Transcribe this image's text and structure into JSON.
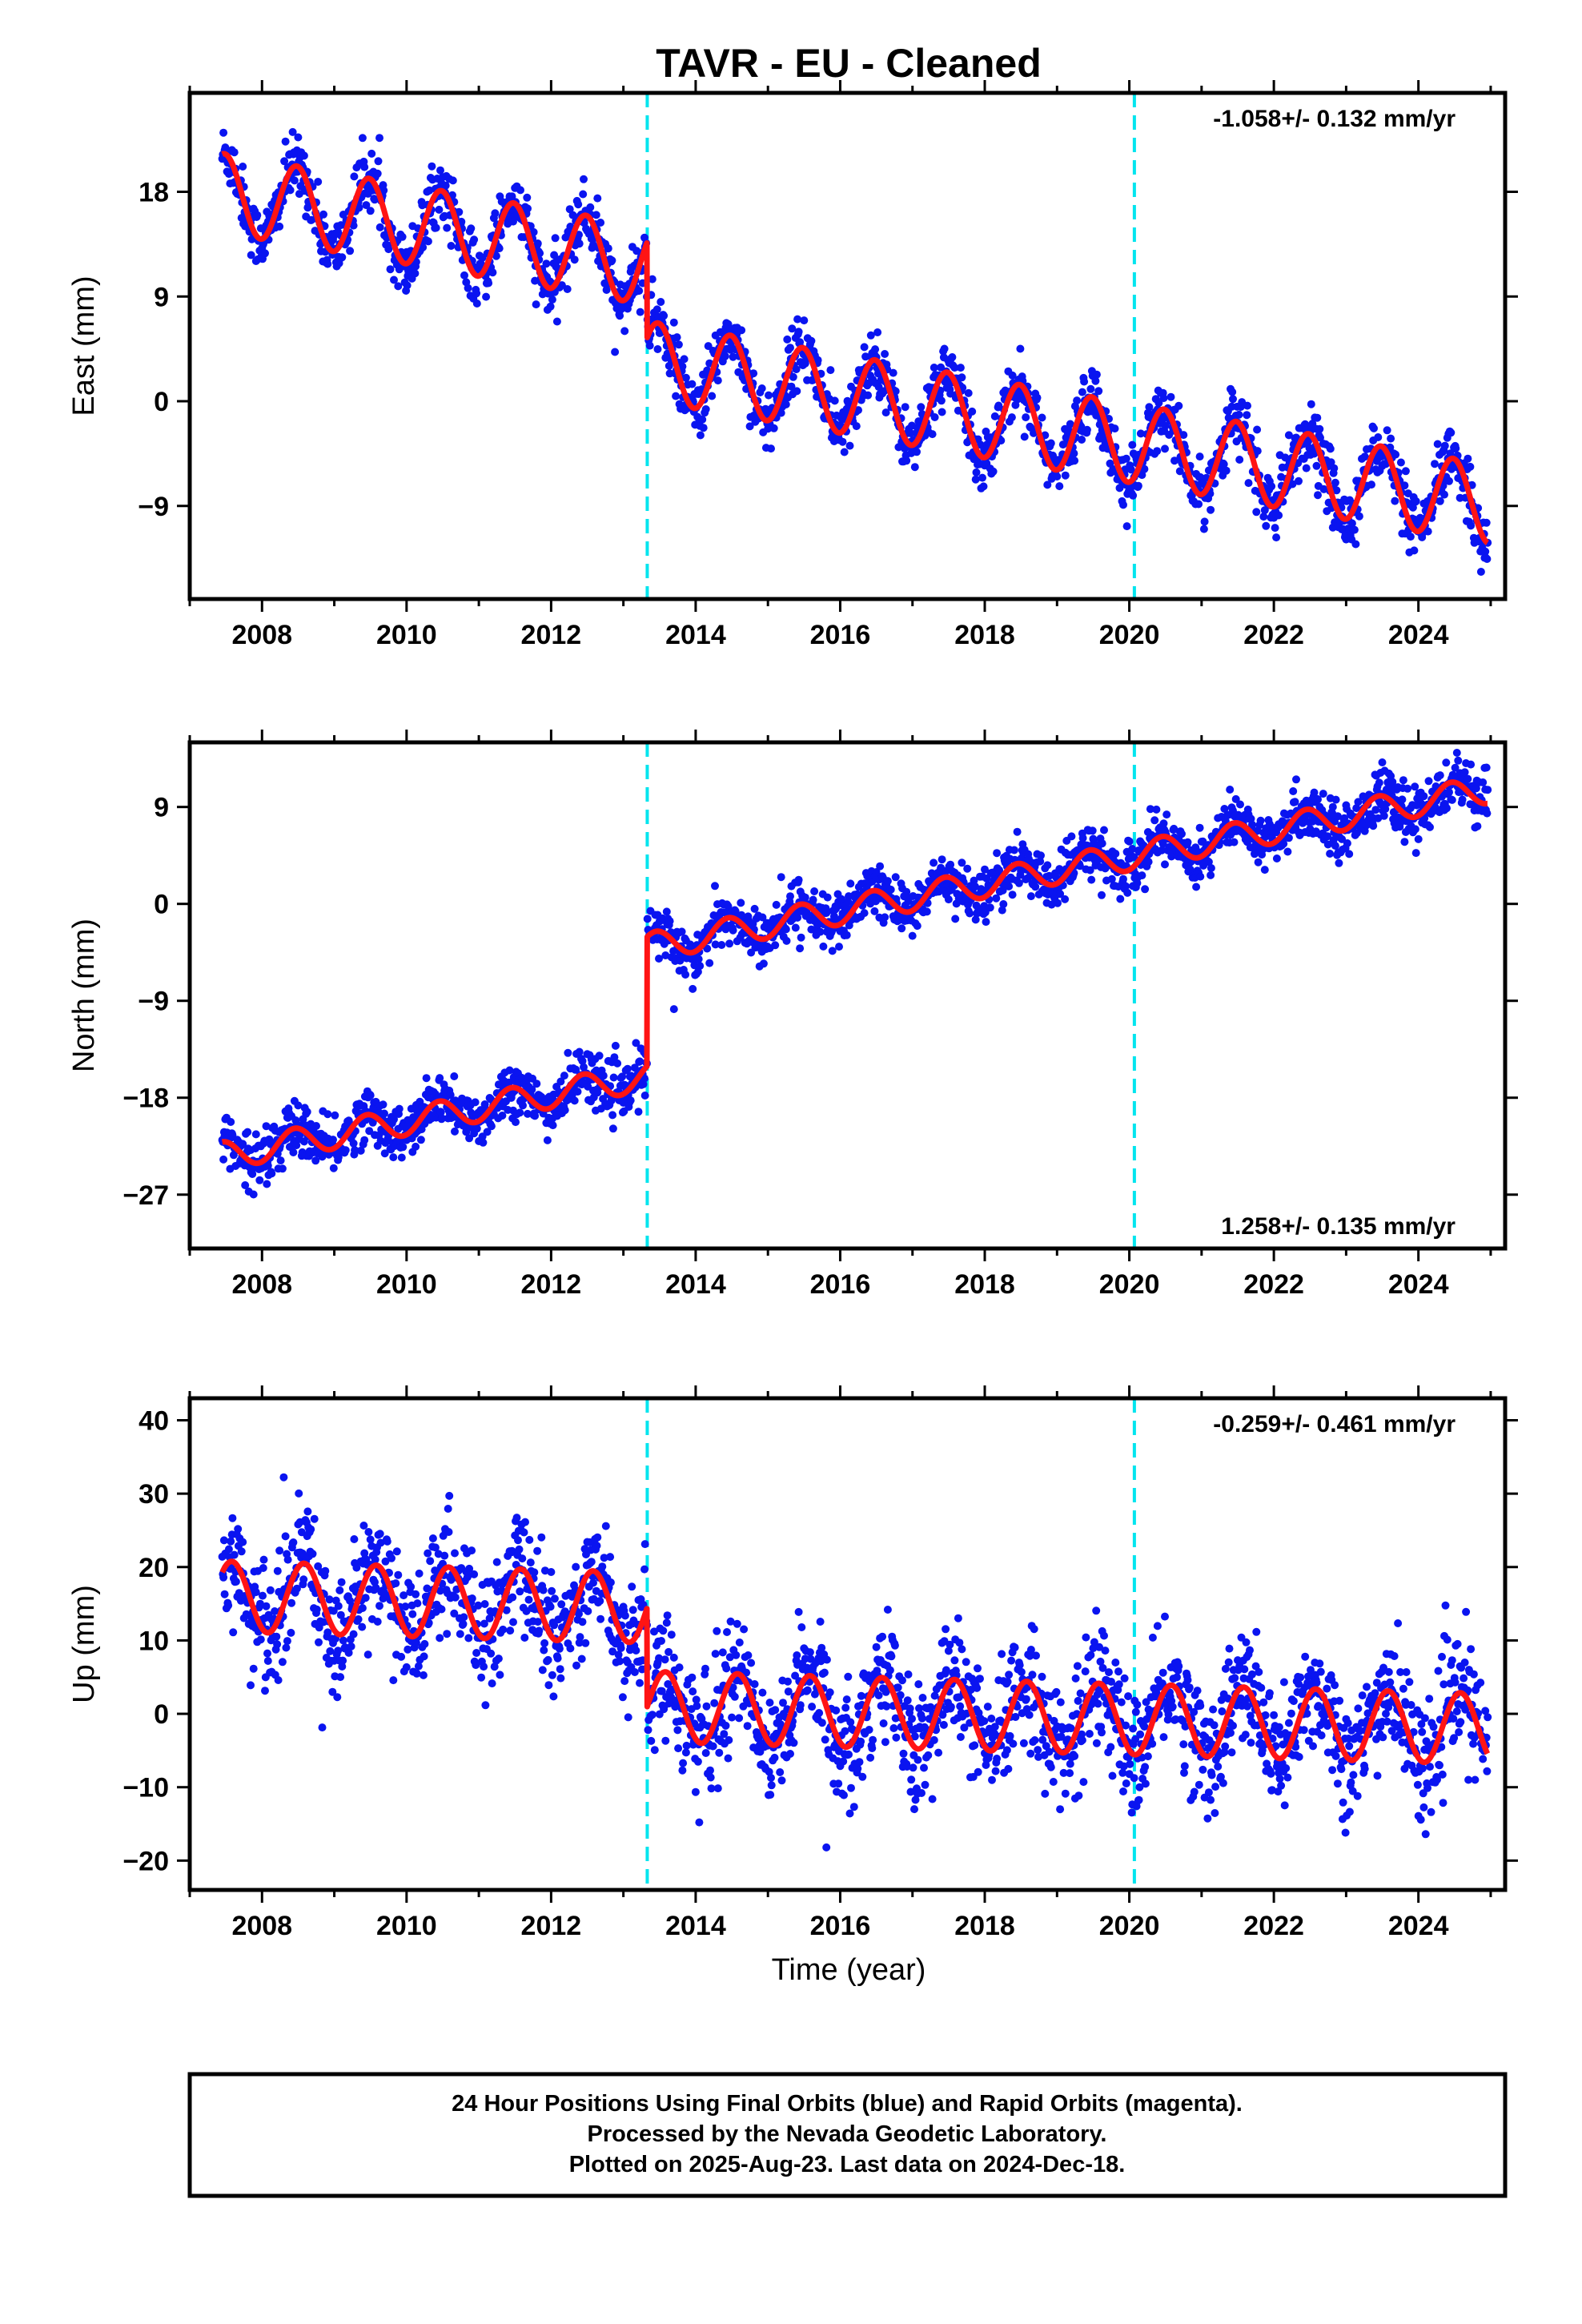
{
  "title": "TAVR  - EU - Cleaned",
  "xlabel": "Time (year)",
  "footer": {
    "line1": "24 Hour Positions Using Final Orbits (blue) and Rapid Orbits (magenta).",
    "line2": "Processed by the Nevada Geodetic Laboratory.",
    "line3": "Plotted on 2025-Aug-23. Last data on 2024-Dec-18."
  },
  "colors": {
    "points": "#0a14f0",
    "model": "#ff1414",
    "events": "#00e5ee",
    "frame": "#000000"
  },
  "chart_data": [
    {
      "type": "scatter",
      "component": "east",
      "ylabel": "East (mm)",
      "rate_label": "-1.058+/- 0.132 mm/yr",
      "rate_position": "top-right",
      "xlim": [
        2007.0,
        2025.2
      ],
      "ylim": [
        -17,
        26.5
      ],
      "xticks": [
        2008,
        2010,
        2012,
        2014,
        2016,
        2018,
        2020,
        2022,
        2024
      ],
      "yticks": [
        -9,
        0,
        9,
        18
      ],
      "event_lines_x": [
        2013.33,
        2020.07
      ],
      "data_start": 2007.45,
      "data_end": 2024.96,
      "model": {
        "rate_mm_per_yr": -1.058,
        "intercept_mm": 17.9,
        "reference_year": 2007.45,
        "annual_amplitude_mm": 3.4,
        "annual_peak_year_fraction": 0.48,
        "offsets": [
          {
            "epoch": 2013.33,
            "jump_mm": -8.2
          }
        ]
      },
      "scatter_std_mm": 1.3
    },
    {
      "type": "scatter",
      "component": "north",
      "ylabel": "North (mm)",
      "rate_label": "1.258+/- 0.135 mm/yr",
      "rate_position": "bottom-right",
      "xlim": [
        2007.0,
        2025.2
      ],
      "ylim": [
        -32,
        15
      ],
      "xticks": [
        2008,
        2010,
        2012,
        2014,
        2016,
        2018,
        2020,
        2022,
        2024
      ],
      "yticks": [
        -27,
        -18,
        -9,
        0,
        9
      ],
      "event_lines_x": [
        2013.33,
        2020.07
      ],
      "data_start": 2007.45,
      "data_end": 2024.96,
      "model": {
        "rate_mm_per_yr": 1.258,
        "intercept_mm": -23.4,
        "reference_year": 2007.45,
        "annual_amplitude_mm": 1.3,
        "annual_peak_year_fraction": 0.45,
        "offsets": [
          {
            "epoch": 2013.33,
            "jump_mm": 12.0
          }
        ]
      },
      "scatter_std_mm": 1.2
    },
    {
      "type": "scatter",
      "component": "up",
      "ylabel": "Up (mm)",
      "rate_label": "-0.259+/- 0.461 mm/yr",
      "rate_position": "top-right",
      "xlim": [
        2007.0,
        2025.2
      ],
      "ylim": [
        -24,
        43
      ],
      "xticks": [
        2008,
        2010,
        2012,
        2014,
        2016,
        2018,
        2020,
        2022,
        2024
      ],
      "yticks": [
        -20,
        -10,
        0,
        10,
        20,
        30,
        40
      ],
      "event_lines_x": [
        2013.33,
        2020.07
      ],
      "data_start": 2007.45,
      "data_end": 2024.96,
      "model": {
        "rate_mm_per_yr": -0.259,
        "intercept_mm": 16.0,
        "reference_year": 2007.45,
        "annual_amplitude_mm": 4.8,
        "annual_peak_year_fraction": 0.58,
        "offsets": [
          {
            "epoch": 2013.33,
            "jump_mm": -13.5
          }
        ]
      },
      "scatter_std_mm": 4.0
    }
  ]
}
